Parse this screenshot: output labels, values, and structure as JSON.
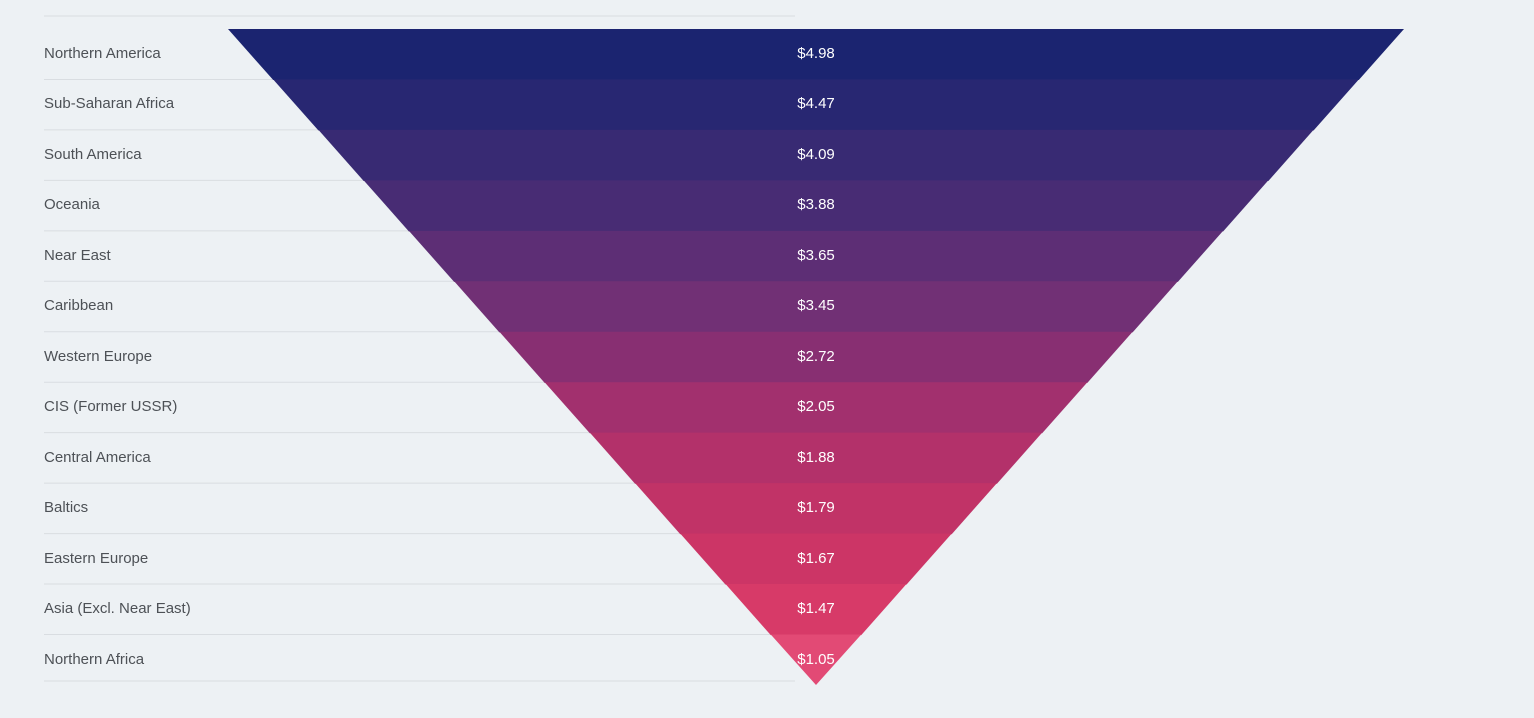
{
  "chart_data": {
    "type": "funnel",
    "title": "",
    "orientation": "inverted-pyramid",
    "legend_position": "none",
    "grid": "row-separators-left",
    "categories": [
      "Northern America",
      "Sub-Saharan Africa",
      "South America",
      "Oceania",
      "Near East",
      "Caribbean",
      "Western Europe",
      "CIS (Former USSR)",
      "Central America",
      "Baltics",
      "Eastern Europe",
      "Asia (Excl. Near East)",
      "Northern Africa"
    ],
    "values": [
      4.98,
      4.47,
      4.09,
      3.88,
      3.65,
      3.45,
      2.72,
      2.05,
      1.88,
      1.79,
      1.67,
      1.47,
      1.05
    ],
    "value_labels": [
      "$4.98",
      "$4.47",
      "$4.09",
      "$3.88",
      "$3.65",
      "$3.45",
      "$2.72",
      "$2.05",
      "$1.88",
      "$1.79",
      "$1.67",
      "$1.47",
      "$1.05"
    ],
    "colors": [
      "#1b2470",
      "#282772",
      "#382a73",
      "#482c74",
      "#5d2e75",
      "#713075",
      "#882f72",
      "#a2306e",
      "#b3316a",
      "#c13367",
      "#cc3566",
      "#d73a68",
      "#e24a75"
    ],
    "background_color": "#edf1f4",
    "label_text_color": "#4d5156",
    "value_text_color": "#ffffff",
    "separator_line_color": "#d9dde1"
  }
}
